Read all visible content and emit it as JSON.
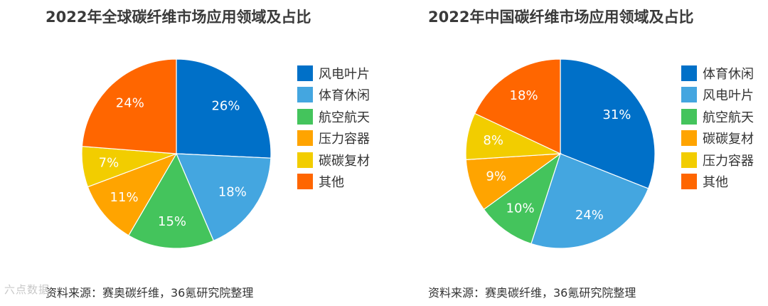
{
  "chart_data": [
    {
      "type": "pie",
      "title": "2022年全球碳纤维市场应用领域及占比",
      "source": "资料来源：赛奥碳纤维，36氪研究院整理",
      "categories": [
        "风电叶片",
        "体育休闲",
        "航空航天",
        "压力容器",
        "碳碳复材",
        "其他"
      ],
      "values": [
        26,
        18,
        15,
        11,
        7,
        24
      ],
      "value_labels": [
        "26%",
        "18%",
        "15%",
        "11%",
        "7%",
        "24%"
      ],
      "colors": [
        "#0070C8",
        "#44A6E0",
        "#44C45C",
        "#FFA400",
        "#F2CD00",
        "#FF6600"
      ],
      "start": "12 o'clock, clockwise",
      "legend": "right"
    },
    {
      "type": "pie",
      "title": "2022年中国碳纤维市场应用领域及占比",
      "source": "资料来源：赛奥碳纤维，36氪研究院整理",
      "categories": [
        "体育休闲",
        "风电叶片",
        "航空航天",
        "碳碳复材",
        "压力容器",
        "其他"
      ],
      "values": [
        31,
        24,
        10,
        9,
        8,
        18
      ],
      "value_labels": [
        "31%",
        "24%",
        "10%",
        "9%",
        "8%",
        "18%"
      ],
      "colors": [
        "#0070C8",
        "#44A6E0",
        "#44C45C",
        "#FFA400",
        "#F2CD00",
        "#FF6600"
      ],
      "start": "12 o'clock, clockwise",
      "legend": "right"
    }
  ],
  "watermark": "六点数据"
}
